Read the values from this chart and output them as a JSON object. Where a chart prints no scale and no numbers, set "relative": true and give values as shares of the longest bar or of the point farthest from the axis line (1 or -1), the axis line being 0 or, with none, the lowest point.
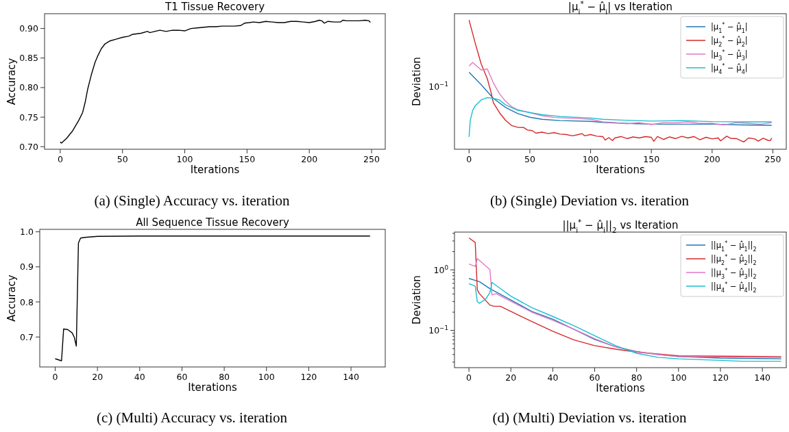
{
  "chart_data": [
    {
      "type": "line",
      "title": "T1 Tissue Recovery",
      "xlabel": "Iterations",
      "ylabel": "Accuracy",
      "annotations": [
        "(a) (Single) Accuracy vs. iteration"
      ],
      "xlim": [
        -12.6,
        261
      ],
      "xticks": [
        0,
        50,
        100,
        150,
        200,
        250
      ],
      "ylim": [
        0.6957,
        0.925
      ],
      "yticks": [
        {
          "value": 0.7,
          "label": "0.70"
        },
        {
          "value": 0.75,
          "label": "0.75"
        },
        {
          "value": 0.8,
          "label": "0.80"
        },
        {
          "value": 0.85,
          "label": "0.85"
        },
        {
          "value": 0.9,
          "label": "0.90"
        }
      ],
      "grid": false,
      "legend": false,
      "series": [
        {
          "color": "#000000",
          "x": [
            0,
            1,
            5,
            10,
            15,
            18,
            20,
            22,
            25,
            28,
            30,
            33,
            36,
            40,
            45,
            50,
            55,
            58,
            65,
            70,
            72,
            80,
            85,
            90,
            95,
            100,
            105,
            110,
            120,
            125,
            130,
            140,
            145,
            148,
            152,
            155,
            160,
            165,
            170,
            175,
            180,
            185,
            190,
            195,
            200,
            205,
            208,
            210,
            212,
            215,
            220,
            225,
            227,
            230,
            235,
            240,
            245,
            248,
            249
          ],
          "values": [
            0.708,
            0.706,
            0.714,
            0.727,
            0.745,
            0.758,
            0.775,
            0.797,
            0.822,
            0.843,
            0.853,
            0.866,
            0.874,
            0.879,
            0.882,
            0.885,
            0.887,
            0.89,
            0.892,
            0.895,
            0.893,
            0.897,
            0.895,
            0.897,
            0.897,
            0.896,
            0.9,
            0.901,
            0.903,
            0.903,
            0.904,
            0.904,
            0.905,
            0.909,
            0.91,
            0.911,
            0.91,
            0.912,
            0.911,
            0.91,
            0.91,
            0.912,
            0.912,
            0.911,
            0.91,
            0.912,
            0.914,
            0.913,
            0.909,
            0.912,
            0.911,
            0.911,
            0.914,
            0.913,
            0.913,
            0.913,
            0.914,
            0.913,
            0.91
          ]
        }
      ]
    },
    {
      "type": "line",
      "title": "|μ$_{i}$$^{*}$ − μ̂$_{i}$| vs Iteration",
      "xlabel": "Iterations",
      "ylabel": "Deviation",
      "annotations": [
        "(b) (Single) Deviation vs. iteration",
        "10$^{−1}$"
      ],
      "relative": true,
      "xlim": [
        -12,
        261
      ],
      "xticks": [
        0,
        50,
        100,
        150,
        200,
        250
      ],
      "grid": false,
      "legend": "top right",
      "series": [
        {
          "name": "|μ$_{1}$$^{*}$ − μ̂$_{1}$|",
          "color": "#1f77b4",
          "x": [
            0,
            10,
            20,
            30,
            40,
            50,
            60,
            75,
            100,
            110,
            130,
            150,
            175,
            200,
            225,
            249
          ],
          "values": [
            0.596,
            0.5,
            0.394,
            0.324,
            0.276,
            0.248,
            0.232,
            0.222,
            0.216,
            0.208,
            0.2,
            0.194,
            0.194,
            0.194,
            0.188,
            0.186
          ]
        },
        {
          "name": "|μ$_{2}$$^{*}$ − μ̂$_{2}$|",
          "color": "#d62728",
          "x": [
            0,
            5,
            10,
            15,
            18,
            20,
            25,
            30,
            35,
            40,
            45,
            48,
            52,
            55,
            60,
            65,
            70,
            75,
            80,
            85,
            90,
            93,
            95,
            100,
            105,
            110,
            112,
            115,
            118,
            120,
            125,
            130,
            135,
            140,
            145,
            150,
            152,
            155,
            160,
            165,
            170,
            175,
            180,
            185,
            190,
            195,
            200,
            205,
            207,
            212,
            215,
            220,
            226,
            230,
            235,
            238,
            242,
            246,
            248,
            249
          ],
          "values": [
            1,
            0.824,
            0.66,
            0.546,
            0.444,
            0.36,
            0.284,
            0.224,
            0.184,
            0.17,
            0.168,
            0.149,
            0.1446,
            0.1246,
            0.1324,
            0.121,
            0.1284,
            0.1176,
            0.114,
            0.1044,
            0.114,
            0.121,
            0.1044,
            0.114,
            0.1014,
            0.0984,
            0.0712,
            0.0902,
            0.0672,
            0.0876,
            0.0984,
            0.0824,
            0.0956,
            0.0876,
            0.0984,
            0.0928,
            0.0614,
            0.0984,
            0.0756,
            0.0956,
            0.0824,
            0.1,
            0.0876,
            0.0984,
            0.0734,
            0.0928,
            0.0802,
            0.0876,
            0.0652,
            0.1014,
            0.085,
            0.0824,
            0.0562,
            0.0876,
            0.0802,
            0.0632,
            0.085,
            0.069,
            0.0672,
            0.0876
          ]
        },
        {
          "name": "|μ$_{3}$$^{*}$ − μ̂$_{3}$|",
          "color": "#e377c2",
          "x": [
            0,
            3,
            10,
            15,
            20,
            25,
            30,
            35,
            40,
            50,
            60,
            70,
            80,
            90,
            100,
            110,
            120,
            130,
            140,
            150,
            160,
            170,
            180,
            190,
            200,
            210,
            220,
            230,
            240,
            249
          ],
          "values": [
            0.644,
            0.672,
            0.614,
            0.622,
            0.514,
            0.43,
            0.372,
            0.33,
            0.306,
            0.284,
            0.26,
            0.246,
            0.242,
            0.238,
            0.232,
            0.212,
            0.206,
            0.1976,
            0.206,
            0.1908,
            0.206,
            0.206,
            0.212,
            0.2,
            0.2,
            0.1886,
            0.206,
            0.2,
            0.1942,
            0.206
          ]
        },
        {
          "name": "|μ$_{4}$$^{*}$ − μ̂$_{4}$|",
          "color": "#17becf",
          "x": [
            0,
            1,
            3,
            5,
            10,
            15,
            20,
            25,
            30,
            40,
            50,
            60,
            75,
            100,
            110,
            125,
            150,
            175,
            200,
            225,
            249
          ],
          "values": [
            0.0956,
            0.225,
            0.302,
            0.336,
            0.382,
            0.4,
            0.394,
            0.382,
            0.344,
            0.302,
            0.284,
            0.268,
            0.254,
            0.242,
            0.232,
            0.226,
            0.218,
            0.222,
            0.214,
            0.212,
            0.212
          ]
        }
      ]
    },
    {
      "type": "line",
      "title": "All Sequence Tissue Recovery",
      "xlabel": "Iterations",
      "ylabel": "Accuracy",
      "annotations": [
        "(c) (Multi) Accuracy vs. iteration"
      ],
      "xlim": [
        -7.3,
        156.2
      ],
      "xticks": [
        0,
        20,
        40,
        60,
        80,
        100,
        120,
        140
      ],
      "ylim": [
        0.6145,
        1.007
      ],
      "yticks": [
        0.7,
        0.8,
        0.9,
        {
          "value": 1,
          "label": "1.0"
        }
      ],
      "grid": false,
      "legend": false,
      "series": [
        {
          "color": "#000000",
          "x": [
            0,
            3,
            4,
            6,
            8,
            9,
            10,
            11,
            12,
            14,
            20,
            40,
            60,
            100,
            149
          ],
          "values": [
            0.638,
            0.632,
            0.723,
            0.721,
            0.712,
            0.7,
            0.674,
            0.968,
            0.982,
            0.984,
            0.987,
            0.988,
            0.988,
            0.988,
            0.988
          ]
        }
      ]
    },
    {
      "type": "line",
      "title": "||μ$_{i}$$^{*}$ − μ̂$_{i}$||$_{2}$ vs Iteration",
      "xlabel": "Iterations",
      "ylabel": "Deviation",
      "annotations": [
        "(d) (Multi) Deviation vs. iteration"
      ],
      "log": "y",
      "xlim": [
        -6.9,
        151.4
      ],
      "xticks": [
        0,
        20,
        40,
        60,
        80,
        100,
        120,
        140
      ],
      "ylim": [
        0.0243,
        4.2
      ],
      "yticks": [
        {
          "value": 0.03,
          "label": null
        },
        {
          "value": 0.04,
          "label": null
        },
        {
          "value": 0.05,
          "label": null
        },
        {
          "value": 0.06,
          "label": null
        },
        {
          "value": 0.07,
          "label": null
        },
        {
          "value": 0.08,
          "label": null
        },
        {
          "value": 0.09,
          "label": null
        },
        {
          "value": 0.1,
          "label": "10$^{−1}$"
        },
        {
          "value": 0.2,
          "label": null
        },
        {
          "value": 0.3,
          "label": null
        },
        {
          "value": 0.4,
          "label": null
        },
        {
          "value": 0.5,
          "label": null
        },
        {
          "value": 0.6,
          "label": null
        },
        {
          "value": 0.7,
          "label": null
        },
        {
          "value": 0.8,
          "label": null
        },
        {
          "value": 0.9,
          "label": null
        },
        {
          "value": 1,
          "label": "10$^{0}$"
        },
        {
          "value": 2,
          "label": null
        },
        {
          "value": 3,
          "label": null
        },
        {
          "value": 4,
          "label": null
        }
      ],
      "grid": false,
      "legend": "top right",
      "series": [
        {
          "name": "||μ$_{1}$$^{*}$ − μ̂$_{1}$||$_{2}$",
          "color": "#1f77b4",
          "x": [
            0,
            5,
            10,
            20,
            30,
            40,
            50,
            60,
            70,
            80,
            90,
            100,
            120,
            149
          ],
          "values": [
            0.72,
            0.64,
            0.49,
            0.318,
            0.206,
            0.154,
            0.105,
            0.071,
            0.0536,
            0.045,
            0.04,
            0.037,
            0.035,
            0.034
          ]
        },
        {
          "name": "||μ$_{2}$$^{*}$ − μ̂$_{2}$||$_{2}$",
          "color": "#d62728",
          "x": [
            0,
            3,
            4,
            5,
            10,
            12,
            15,
            20,
            30,
            40,
            50,
            60,
            70,
            80,
            100,
            120,
            149
          ],
          "values": [
            3.37,
            2.83,
            0.467,
            0.405,
            0.262,
            0.25,
            0.25,
            0.206,
            0.14,
            0.097,
            0.07,
            0.056,
            0.049,
            0.044,
            0.038,
            0.0376,
            0.037
          ]
        },
        {
          "name": "||μ$_{3}$$^{*}$ − μ̂$_{3}$||$_{2}$",
          "color": "#e377c2",
          "x": [
            0,
            3,
            4,
            10,
            11,
            13,
            20,
            30,
            40,
            50,
            60,
            70,
            80,
            100,
            149
          ],
          "values": [
            1.25,
            1.14,
            1.53,
            1.01,
            0.385,
            0.405,
            0.303,
            0.2,
            0.147,
            0.105,
            0.073,
            0.0536,
            0.044,
            0.037,
            0.0357
          ]
        },
        {
          "name": "||μ$_{4}$$^{*}$ − μ̂$_{4}$||$_{2}$",
          "color": "#17becf",
          "x": [
            0,
            3,
            4,
            5,
            8,
            10,
            11,
            15,
            20,
            30,
            40,
            50,
            60,
            70,
            80,
            90,
            100,
            120,
            130,
            149
          ],
          "values": [
            0.59,
            0.54,
            0.3,
            0.28,
            0.33,
            0.42,
            0.62,
            0.49,
            0.367,
            0.238,
            0.17,
            0.12,
            0.082,
            0.056,
            0.042,
            0.036,
            0.034,
            0.032,
            0.031,
            0.031
          ]
        }
      ]
    }
  ]
}
